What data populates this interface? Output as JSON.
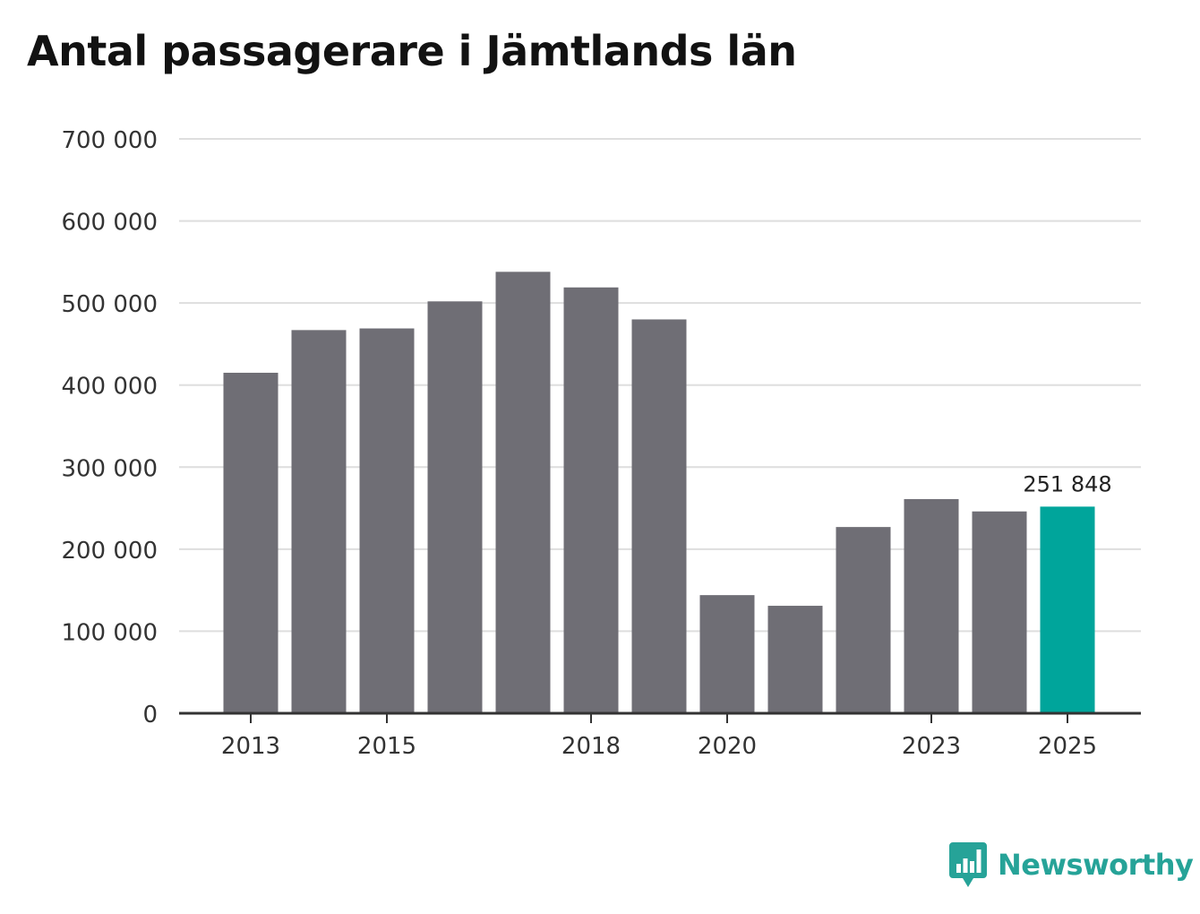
{
  "colors": {
    "bar": "#6f6e75",
    "highlight": "#00a59b",
    "grid": "#dedede",
    "axis": "#333333",
    "text": "#333333",
    "brand": "#26a398"
  },
  "brand": {
    "name": "Newsworthy",
    "icon": "newsworthy-logo-icon"
  },
  "chart_data": {
    "type": "bar",
    "title": "Antal passagerare i Jämtlands län",
    "xlabel": "",
    "ylabel": "",
    "ylim": [
      0,
      700000
    ],
    "yticks": [
      0,
      100000,
      200000,
      300000,
      400000,
      500000,
      600000,
      700000
    ],
    "ytick_labels": [
      "0",
      "100 000",
      "200 000",
      "300 000",
      "400 000",
      "500 000",
      "600 000",
      "700 000"
    ],
    "categories": [
      "2013",
      "2014",
      "2015",
      "2016",
      "2017",
      "2018",
      "2019",
      "2020",
      "2021",
      "2022",
      "2023",
      "2024",
      "2025"
    ],
    "xtick_labels": [
      "2013",
      "",
      "2015",
      "",
      "",
      "2018",
      "",
      "2020",
      "",
      "",
      "2023",
      "",
      "2025"
    ],
    "values": [
      415000,
      467000,
      469000,
      502000,
      538000,
      519000,
      480000,
      144000,
      131000,
      227000,
      261000,
      246000,
      251848
    ],
    "highlight_index": 12,
    "annotation": {
      "category": "2025",
      "text": "251 848"
    },
    "grid": true
  }
}
